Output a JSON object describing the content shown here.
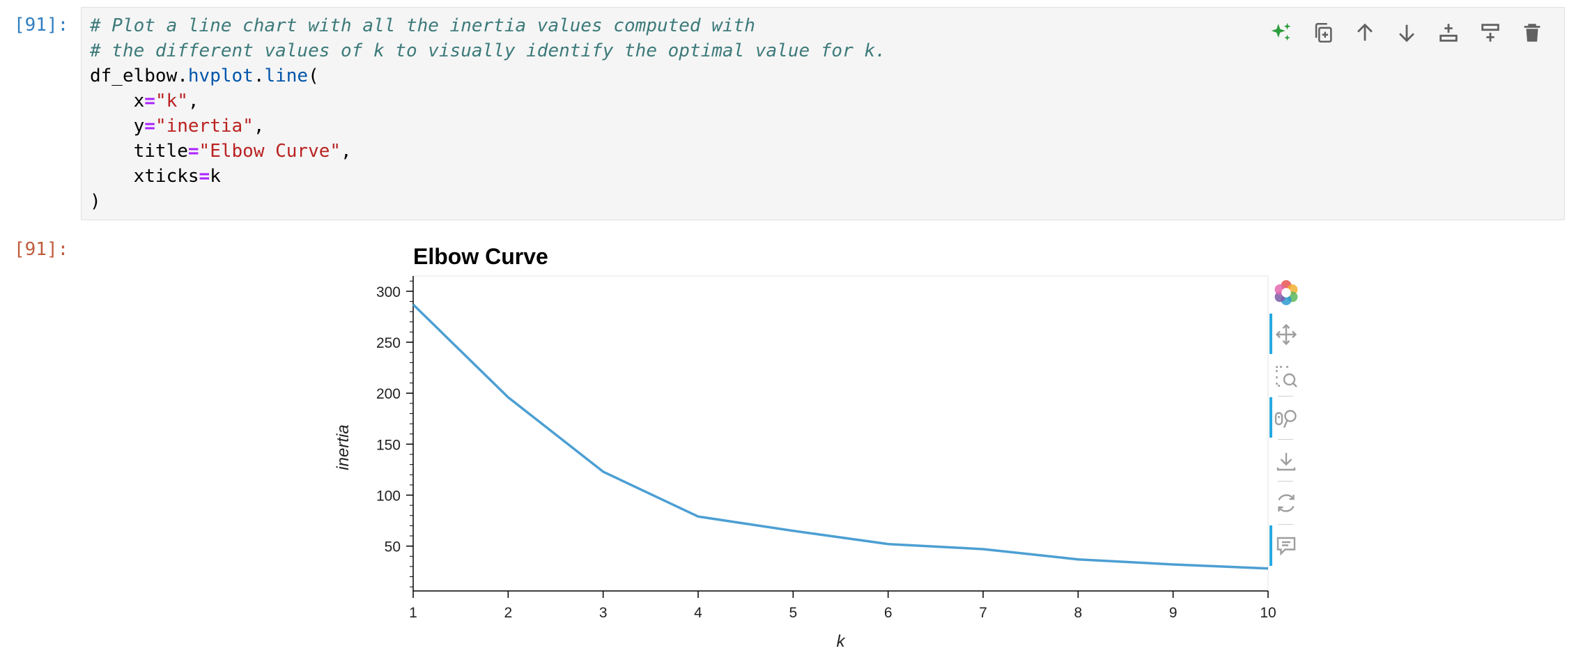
{
  "input_prompt": "[91]:",
  "output_prompt": "[91]:",
  "code_lines": {
    "l1": "# Plot a line chart with all the inertia values computed with",
    "l2": "# the different values of k to visually identify the optimal value for k.",
    "l3_obj": "df_elbow.",
    "l3_attr": "hvplot",
    "l3_dot": ".",
    "l3_meth": "line",
    "l3_paren": "(",
    "l4_name": "    x",
    "l4_val": "\"k\"",
    "l5_name": "    y",
    "l5_val": "\"inertia\"",
    "l6_name": "    title",
    "l6_val": "\"Elbow Curve\"",
    "l7_name": "    xticks",
    "l7_val": "k",
    "l8": ")",
    "eq": "=",
    "comma": ","
  },
  "toolbar_icons": [
    "sparkle-ai-icon",
    "duplicate-icon",
    "move-up-icon",
    "move-down-icon",
    "insert-above-icon",
    "insert-below-icon",
    "delete-icon"
  ],
  "bokeh_tools": [
    "bokeh-logo-icon",
    "pan-icon",
    "box-zoom-icon",
    "wheel-zoom-icon",
    "save-icon",
    "reset-icon",
    "hover-icon"
  ],
  "colors": {
    "line": "#4c9fd3",
    "active_tool": "#26aae1"
  },
  "chart_data": {
    "type": "line",
    "title": "Elbow Curve",
    "xlabel": "k",
    "ylabel": "inertia",
    "x": [
      1,
      2,
      3,
      4,
      5,
      6,
      7,
      8,
      9,
      10
    ],
    "y": [
      287,
      196,
      123,
      79,
      65,
      52,
      47,
      37,
      32,
      28
    ],
    "xlim": [
      1,
      10
    ],
    "ylim": [
      6,
      315
    ],
    "x_ticks": [
      "1",
      "2",
      "3",
      "4",
      "5",
      "6",
      "7",
      "8",
      "9",
      "10"
    ],
    "y_ticks": [
      "50",
      "100",
      "150",
      "200",
      "250",
      "300"
    ],
    "grid": false
  }
}
